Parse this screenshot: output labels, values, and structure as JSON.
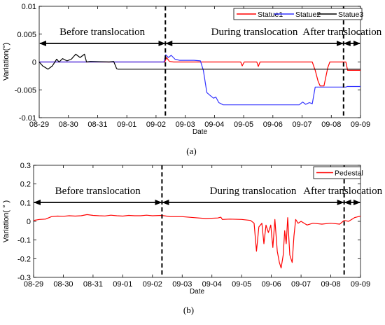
{
  "chart_data": [
    {
      "type": "line",
      "panel_label": "(a)",
      "xlabel": "Date",
      "ylabel": "Variation(°)",
      "ylim": [
        -0.01,
        0.01
      ],
      "yticks": [
        0.01,
        0.005,
        0,
        -0.005,
        -0.01
      ],
      "ytick_labels": [
        "0.01",
        "0.005",
        "0",
        "-0.005",
        "-0.01"
      ],
      "xlim": [
        0,
        11
      ],
      "xtick_labels": [
        "08-29",
        "08-30",
        "08-31",
        "09-01",
        "09-02",
        "09-03",
        "09-04",
        "09-05",
        "09-06",
        "09-07",
        "09-08",
        "09-09"
      ],
      "grid": false,
      "legend_position": "top-right",
      "phase_boundaries": [
        4.32,
        10.42
      ],
      "annotations": [
        "Before translocation",
        "During translocation",
        "After translocation"
      ],
      "series": [
        {
          "name": "Statue1",
          "color": "#ff0000",
          "points": [
            [
              0,
              0
            ],
            [
              4.3,
              0
            ],
            [
              4.36,
              0.0008
            ],
            [
              4.46,
              0.0001
            ],
            [
              4.6,
              0
            ],
            [
              6.9,
              0
            ],
            [
              6.95,
              -0.0007
            ],
            [
              7.02,
              0
            ],
            [
              7.45,
              0
            ],
            [
              7.5,
              -0.0008
            ],
            [
              7.56,
              0
            ],
            [
              9.35,
              0
            ],
            [
              9.45,
              -0.0015
            ],
            [
              9.55,
              -0.0035
            ],
            [
              9.62,
              -0.0043
            ],
            [
              9.75,
              -0.0043
            ],
            [
              9.82,
              -0.0025
            ],
            [
              9.88,
              -0.001
            ],
            [
              9.95,
              0
            ],
            [
              10.5,
              0
            ],
            [
              10.56,
              -0.0015
            ],
            [
              11,
              -0.0015
            ]
          ]
        },
        {
          "name": "Statue2",
          "color": "#3333ff",
          "points": [
            [
              0,
              0
            ],
            [
              4.27,
              0
            ],
            [
              4.33,
              0.0013
            ],
            [
              4.42,
              0.0008
            ],
            [
              4.52,
              0.0012
            ],
            [
              4.65,
              0.0005
            ],
            [
              4.8,
              0.0003
            ],
            [
              5.3,
              0.0003
            ],
            [
              5.52,
              0.0002
            ],
            [
              5.62,
              -0.0015
            ],
            [
              5.74,
              -0.0055
            ],
            [
              5.85,
              -0.006
            ],
            [
              5.97,
              -0.0065
            ],
            [
              6.05,
              -0.0063
            ],
            [
              6.15,
              -0.0073
            ],
            [
              6.3,
              -0.0077
            ],
            [
              6.6,
              -0.0077
            ],
            [
              7.5,
              -0.0077
            ],
            [
              7.8,
              -0.0077
            ],
            [
              8.9,
              -0.0077
            ],
            [
              9.02,
              -0.0072
            ],
            [
              9.12,
              -0.0076
            ],
            [
              9.25,
              -0.0073
            ],
            [
              9.35,
              -0.0075
            ],
            [
              9.45,
              -0.0045
            ],
            [
              10.5,
              -0.0045
            ],
            [
              10.55,
              -0.0044
            ],
            [
              11,
              -0.0044
            ]
          ]
        },
        {
          "name": "Statue3",
          "color": "#000000",
          "points": [
            [
              0,
              0
            ],
            [
              0.12,
              -0.0007
            ],
            [
              0.3,
              -0.0013
            ],
            [
              0.45,
              -0.0007
            ],
            [
              0.6,
              0.0005
            ],
            [
              0.68,
              0
            ],
            [
              0.8,
              0.0006
            ],
            [
              0.95,
              0.0002
            ],
            [
              1.1,
              0.0005
            ],
            [
              1.25,
              0.0014
            ],
            [
              1.4,
              0.0008
            ],
            [
              1.55,
              0.0014
            ],
            [
              1.62,
              0
            ],
            [
              1.75,
              0.0001
            ],
            [
              2.4,
              0
            ],
            [
              2.55,
              0.0001
            ],
            [
              2.65,
              -0.0012
            ],
            [
              2.7,
              -0.0013
            ],
            [
              11,
              -0.0013
            ]
          ]
        }
      ]
    },
    {
      "type": "line",
      "panel_label": "(b)",
      "xlabel": "Date",
      "ylabel": "Variation( ° )",
      "ylim": [
        -0.3,
        0.3
      ],
      "yticks": [
        0.3,
        0.2,
        0.1,
        0,
        -0.1,
        -0.2,
        -0.3
      ],
      "ytick_labels": [
        "0.3",
        "0.2",
        "0.1",
        "0",
        "-0.1",
        "-0.2",
        "-0.3"
      ],
      "xlim": [
        0,
        11
      ],
      "xtick_labels": [
        "08-29",
        "08-30",
        "08-31",
        "09-01",
        "09-02",
        "09-03",
        "09-04",
        "09-05",
        "09-06",
        "09-07",
        "09-08",
        "09-09"
      ],
      "grid": false,
      "legend_position": "top-right",
      "phase_boundaries": [
        4.32,
        10.45
      ],
      "annotations": [
        "Before translocation",
        "During translocation",
        "After translocation"
      ],
      "series": [
        {
          "name": "Pedestal",
          "color": "#ff0000",
          "points": [
            [
              0,
              0.005
            ],
            [
              0.2,
              0.01
            ],
            [
              0.4,
              0.012
            ],
            [
              0.6,
              0.025
            ],
            [
              0.8,
              0.028
            ],
            [
              1.0,
              0.027
            ],
            [
              1.2,
              0.03
            ],
            [
              1.4,
              0.028
            ],
            [
              1.6,
              0.03
            ],
            [
              1.8,
              0.036
            ],
            [
              2.0,
              0.032
            ],
            [
              2.2,
              0.03
            ],
            [
              2.4,
              0.029
            ],
            [
              2.6,
              0.033
            ],
            [
              2.8,
              0.03
            ],
            [
              3.0,
              0.028
            ],
            [
              3.2,
              0.032
            ],
            [
              3.4,
              0.03
            ],
            [
              3.6,
              0.03
            ],
            [
              3.8,
              0.033
            ],
            [
              4.0,
              0.03
            ],
            [
              4.3,
              0.032
            ],
            [
              4.6,
              0.025
            ],
            [
              5.0,
              0.025
            ],
            [
              5.4,
              0.02
            ],
            [
              5.8,
              0.015
            ],
            [
              6.2,
              0.018
            ],
            [
              6.3,
              0.022
            ],
            [
              6.35,
              0.01
            ],
            [
              6.6,
              0.012
            ],
            [
              7.0,
              0.01
            ],
            [
              7.3,
              0.005
            ],
            [
              7.42,
              -0.01
            ],
            [
              7.5,
              -0.16
            ],
            [
              7.58,
              -0.03
            ],
            [
              7.68,
              -0.01
            ],
            [
              7.75,
              -0.12
            ],
            [
              7.82,
              -0.02
            ],
            [
              7.9,
              -0.06
            ],
            [
              7.98,
              -0.02
            ],
            [
              8.05,
              -0.14
            ],
            [
              8.12,
              0.01
            ],
            [
              8.2,
              -0.16
            ],
            [
              8.27,
              -0.22
            ],
            [
              8.33,
              -0.25
            ],
            [
              8.4,
              -0.18
            ],
            [
              8.45,
              -0.05
            ],
            [
              8.5,
              -0.12
            ],
            [
              8.55,
              0.02
            ],
            [
              8.62,
              -0.18
            ],
            [
              8.7,
              -0.22
            ],
            [
              8.76,
              -0.08
            ],
            [
              8.82,
              0.01
            ],
            [
              8.9,
              -0.01
            ],
            [
              9.0,
              0.0
            ],
            [
              9.2,
              -0.02
            ],
            [
              9.4,
              -0.01
            ],
            [
              9.7,
              -0.015
            ],
            [
              10.0,
              -0.01
            ],
            [
              10.3,
              -0.015
            ],
            [
              10.45,
              0.005
            ],
            [
              10.6,
              0.0
            ],
            [
              10.8,
              0.02
            ],
            [
              11,
              0.028
            ]
          ]
        }
      ]
    }
  ]
}
